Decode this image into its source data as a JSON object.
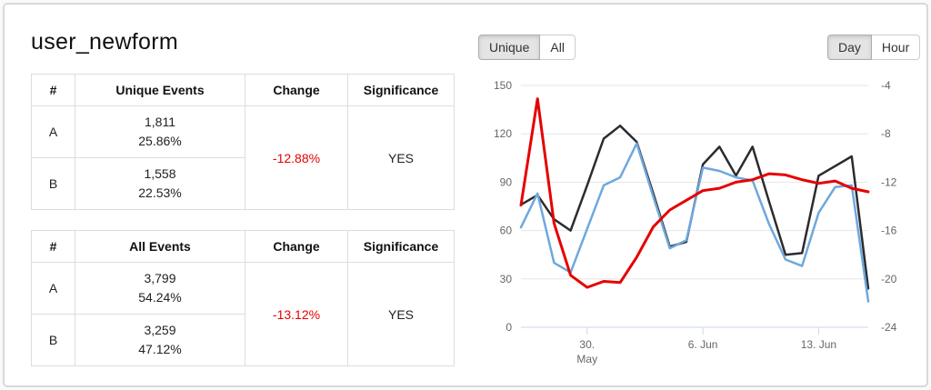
{
  "page": {
    "title": "user_newform"
  },
  "colors": {
    "series_a_line": "#2b2b30",
    "series_b_line": "#6fa8dc",
    "change_line": "#e60000",
    "negative_change_text": "#e60000",
    "grid_line": "#e6e6e6",
    "axis_line": "#ccd6eb",
    "axis_label_text": "#666666",
    "table_border": "#dddddd"
  },
  "tables": [
    {
      "number_header": "#",
      "events_header": "Unique Events",
      "change_header": "Change",
      "significance_header": "Significance",
      "rows": [
        {
          "label": "A",
          "count": "1,811",
          "pct": "25.86%"
        },
        {
          "label": "B",
          "count": "1,558",
          "pct": "22.53%"
        }
      ],
      "change": "-12.88%",
      "significance": "YES"
    },
    {
      "number_header": "#",
      "events_header": "All Events",
      "change_header": "Change",
      "significance_header": "Significance",
      "rows": [
        {
          "label": "A",
          "count": "3,799",
          "pct": "54.24%"
        },
        {
          "label": "B",
          "count": "3,259",
          "pct": "47.12%"
        }
      ],
      "change": "-13.12%",
      "significance": "YES"
    }
  ],
  "toggles": {
    "metric": [
      {
        "label": "Unique",
        "active": true
      },
      {
        "label": "All",
        "active": false
      }
    ],
    "granularity": [
      {
        "label": "Day",
        "active": true
      },
      {
        "label": "Hour",
        "active": false
      }
    ]
  },
  "chart_data": {
    "type": "line",
    "title": "",
    "xlabel": "",
    "ylabel_left": "",
    "ylabel_right": "",
    "grid": true,
    "legend": "none",
    "x_dates": [
      "26. May",
      "27. May",
      "28. May",
      "29. May",
      "30. May",
      "31. May",
      "1. Jun",
      "2. Jun",
      "3. Jun",
      "4. Jun",
      "5. Jun",
      "6. Jun",
      "7. Jun",
      "8. Jun",
      "9. Jun",
      "10. Jun",
      "11. Jun",
      "12. Jun",
      "13. Jun",
      "14. Jun",
      "15. Jun",
      "16. Jun"
    ],
    "x_ticks": [
      {
        "index": 4,
        "lines": [
          "30.",
          "May"
        ]
      },
      {
        "index": 11,
        "lines": [
          "6. Jun"
        ]
      },
      {
        "index": 18,
        "lines": [
          "13. Jun"
        ]
      }
    ],
    "left_axis": {
      "min": 0,
      "max": 150,
      "ticks": [
        0,
        30,
        60,
        90,
        120,
        150
      ]
    },
    "right_axis": {
      "min": -24,
      "max": -4,
      "ticks": [
        -24,
        -20,
        -16,
        -12,
        -8,
        -4
      ]
    },
    "series": [
      {
        "name": "A",
        "axis": "left",
        "color": "#2b2b30",
        "values": [
          76,
          82,
          67,
          60,
          88,
          117,
          125,
          115,
          83,
          50,
          53,
          101,
          112,
          94,
          112,
          78,
          45,
          46,
          94,
          100,
          106,
          24
        ]
      },
      {
        "name": "B",
        "axis": "left",
        "color": "#6fa8dc",
        "values": [
          62,
          83,
          40,
          34,
          61,
          88,
          93,
          114,
          81,
          49,
          54,
          99,
          97,
          93,
          91,
          64,
          42,
          38,
          71,
          87,
          88,
          16
        ]
      },
      {
        "name": "Change",
        "axis": "right",
        "color": "#e60000",
        "values": [
          -13.9,
          -5.1,
          -15.4,
          -19.7,
          -20.7,
          -20.2,
          -20.3,
          -18.2,
          -15.7,
          -14.3,
          -13.5,
          -12.7,
          -12.5,
          -12.0,
          -11.8,
          -11.3,
          -11.4,
          -11.8,
          -12.1,
          -11.9,
          -12.5,
          -12.8
        ]
      }
    ]
  }
}
